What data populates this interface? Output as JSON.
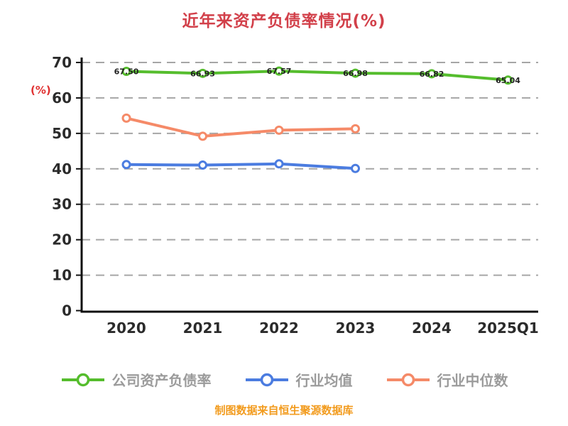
{
  "title": "近年来资产负债率情况(%)",
  "footer": "制图数据来自恒生聚源数据库",
  "chart_data": {
    "type": "line",
    "title": "近年来资产负债率情况(%)",
    "xlabel": "",
    "ylabel": "(%)",
    "ylim": [
      0,
      70
    ],
    "yticks": [
      0,
      10,
      20,
      30,
      40,
      50,
      60,
      70
    ],
    "ytick_interval": 10,
    "grid": "horizontal-dashed",
    "legend_position": "bottom",
    "categories": [
      "2020",
      "2021",
      "2022",
      "2023",
      "2024",
      "2025Q1"
    ],
    "series": [
      {
        "name": "公司资产负债率",
        "color": "#55bd2d",
        "values": [
          67.5,
          66.93,
          67.57,
          66.98,
          66.82,
          65.04
        ],
        "point_labels": [
          "67.50",
          "66.93",
          "67.57",
          "66.98",
          "66.82",
          "65.04"
        ]
      },
      {
        "name": "行业均值",
        "color": "#4b7ce0",
        "values": [
          41.2,
          41.05,
          41.4,
          40.1,
          null,
          null
        ]
      },
      {
        "name": "行业中位数",
        "color": "#f58a68",
        "values": [
          54.3,
          49.2,
          50.9,
          51.3,
          null,
          null
        ]
      }
    ],
    "colors": {
      "title": "#d2404a",
      "ylabel": "#e03131",
      "footer": "#f29b1d",
      "axis": "#111111",
      "axis_text": "#2b2b2b",
      "legend_text": "#9b9b9b",
      "gridline": "#a6a6a6",
      "background": "#ffffff",
      "marker_fill": "#ffffff"
    }
  }
}
